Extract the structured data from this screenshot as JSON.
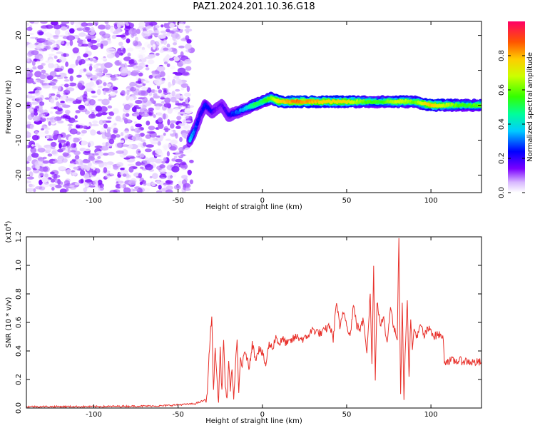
{
  "title": "PAZ1.2024.201.10.36.G18",
  "chart_data": [
    {
      "type": "heatmap",
      "name": "spectrogram",
      "xlabel": "Height of straight line (km)",
      "ylabel": "Frequency (Hz)",
      "xlim": [
        -140,
        130
      ],
      "ylim": [
        -25,
        24
      ],
      "x_ticks": [
        -100,
        -50,
        0,
        50,
        100
      ],
      "y_ticks": [
        -20,
        -10,
        0,
        10,
        20
      ],
      "colorbar": {
        "label": "Normalized spectral amplitude",
        "range": [
          0,
          1
        ],
        "ticks": [
          "0.0",
          "0.2",
          "0.4",
          "0.6",
          "0.8"
        ]
      },
      "ridge": {
        "x": [
          -43,
          -40,
          -37,
          -34,
          -30,
          -27,
          -24,
          -20,
          -15,
          -10,
          -5,
          0,
          5,
          10,
          20,
          30,
          40,
          50,
          60,
          70,
          80,
          90,
          100,
          110,
          120,
          130
        ],
        "freq": [
          -10,
          -7,
          -3,
          0,
          -2,
          -1,
          0,
          -3,
          -2,
          -1,
          0,
          1,
          2,
          1,
          1,
          1,
          1,
          1,
          1,
          1,
          1,
          1,
          0,
          0,
          0,
          0
        ],
        "amplitude": [
          0.4,
          0.3,
          0.2,
          0.25,
          0.2,
          0.15,
          0.15,
          0.2,
          0.3,
          0.35,
          0.5,
          0.5,
          0.6,
          0.75,
          0.85,
          0.8,
          0.75,
          0.75,
          0.6,
          0.55,
          0.7,
          0.6,
          0.8,
          0.65,
          0.55,
          0.6
        ]
      },
      "noise_region_x": [
        -140,
        -42
      ],
      "noise_amplitude": [
        0.0,
        0.15
      ]
    },
    {
      "type": "line",
      "name": "snr",
      "xlabel": "Height of straight line (km)",
      "ylabel": "SNR (10 * v/v)",
      "y_multiplier": "(x10",
      "y_multiplier_exp": "4",
      "y_multiplier_close": ")",
      "xlim": [
        -140,
        130
      ],
      "ylim": [
        0,
        1.2
      ],
      "x_ticks": [
        -100,
        -50,
        0,
        50,
        100
      ],
      "y_ticks": [
        "0.0",
        "0.2",
        "0.4",
        "0.6",
        "0.8",
        "1.0",
        "1.2"
      ],
      "series": [
        {
          "color": "#e8302a",
          "x": [
            -140,
            -100,
            -60,
            -40,
            -33,
            -31,
            -30,
            -29,
            -28,
            -27,
            -26,
            -25,
            -24,
            -23,
            -22,
            -21,
            -20,
            -19,
            -18,
            -17,
            -16,
            -15,
            -14,
            -13,
            -12,
            -10,
            -8,
            -6,
            -4,
            -2,
            0,
            2,
            4,
            6,
            8,
            10,
            12,
            15,
            20,
            25,
            30,
            35,
            40,
            42,
            44,
            46,
            48,
            50,
            52,
            54,
            56,
            58,
            60,
            62,
            64,
            65,
            66,
            67,
            68,
            70,
            72,
            74,
            76,
            78,
            80,
            81,
            82,
            83,
            84,
            85,
            86,
            87,
            88,
            89,
            90,
            92,
            94,
            96,
            98,
            100,
            102,
            104,
            106,
            107,
            108,
            110,
            115,
            120,
            125,
            130
          ],
          "values": [
            0.01,
            0.01,
            0.015,
            0.03,
            0.06,
            0.5,
            0.64,
            0.1,
            0.45,
            0.2,
            0.05,
            0.42,
            0.1,
            0.5,
            0.15,
            0.04,
            0.35,
            0.1,
            0.28,
            0.05,
            0.3,
            0.45,
            0.1,
            0.35,
            0.3,
            0.4,
            0.28,
            0.45,
            0.35,
            0.42,
            0.38,
            0.3,
            0.45,
            0.42,
            0.5,
            0.45,
            0.48,
            0.45,
            0.5,
            0.48,
            0.55,
            0.52,
            0.58,
            0.48,
            0.75,
            0.55,
            0.68,
            0.6,
            0.5,
            0.72,
            0.58,
            0.55,
            0.62,
            0.4,
            0.8,
            0.3,
            0.98,
            0.22,
            0.75,
            0.6,
            0.62,
            0.45,
            0.72,
            0.55,
            0.5,
            1.2,
            0.1,
            0.75,
            0.05,
            0.5,
            0.78,
            0.2,
            0.65,
            0.4,
            0.55,
            0.5,
            0.58,
            0.5,
            0.55,
            0.55,
            0.5,
            0.52,
            0.5,
            0.52,
            0.33,
            0.33,
            0.33,
            0.33,
            0.32,
            0.32
          ]
        }
      ]
    }
  ]
}
